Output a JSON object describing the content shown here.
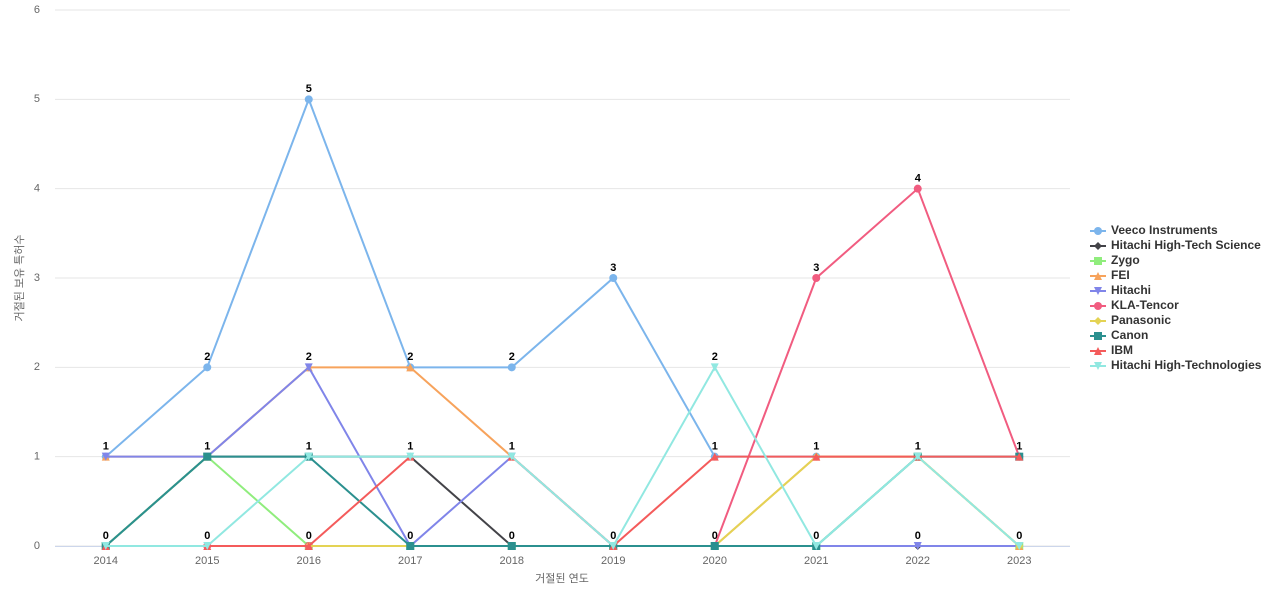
{
  "chart_data": {
    "type": "line",
    "y_label": "거절된 보유 특허수",
    "x_label": "거절된 연도",
    "categories": [
      "2014",
      "2015",
      "2016",
      "2017",
      "2018",
      "2019",
      "2020",
      "2021",
      "2022",
      "2023"
    ],
    "ylim": [
      0,
      6
    ],
    "yticks": [
      0,
      1,
      2,
      3,
      4,
      5,
      6
    ],
    "grid": true,
    "legend": "right",
    "series": [
      {
        "name": "Veeco Instruments",
        "color": "#7cb5ec",
        "values": [
          1,
          2,
          5,
          2,
          2,
          3,
          1,
          1,
          1,
          1
        ]
      },
      {
        "name": "Hitachi High-Tech Science",
        "color": "#434348",
        "values": [
          0,
          1,
          1,
          1,
          0,
          0,
          0,
          0,
          0,
          0
        ]
      },
      {
        "name": "Zygo",
        "color": "#90ed7d",
        "values": [
          0,
          1,
          0,
          0,
          0,
          0,
          0,
          0,
          1,
          0
        ]
      },
      {
        "name": "FEI",
        "color": "#f7a35c",
        "values": [
          1,
          1,
          2,
          2,
          1,
          0,
          0,
          1,
          1,
          0
        ]
      },
      {
        "name": "Hitachi",
        "color": "#8085e9",
        "values": [
          1,
          1,
          2,
          0,
          1,
          0,
          0,
          0,
          0,
          0
        ]
      },
      {
        "name": "KLA-Tencor",
        "color": "#f15c80",
        "values": [
          0,
          0,
          0,
          0,
          0,
          0,
          0,
          3,
          4,
          1
        ]
      },
      {
        "name": "Panasonic",
        "color": "#e4d354",
        "values": [
          0,
          0,
          0,
          0,
          0,
          0,
          0,
          1,
          1,
          0
        ]
      },
      {
        "name": "Canon",
        "color": "#2b908f",
        "values": [
          0,
          1,
          1,
          0,
          0,
          0,
          0,
          0,
          1,
          1
        ]
      },
      {
        "name": "IBM",
        "color": "#f45b5b",
        "values": [
          0,
          0,
          0,
          1,
          1,
          0,
          1,
          1,
          1,
          1
        ]
      },
      {
        "name": "Hitachi High-Technologies",
        "color": "#91e8e1",
        "values": [
          0,
          0,
          1,
          1,
          1,
          0,
          2,
          0,
          1,
          0
        ]
      }
    ]
  }
}
